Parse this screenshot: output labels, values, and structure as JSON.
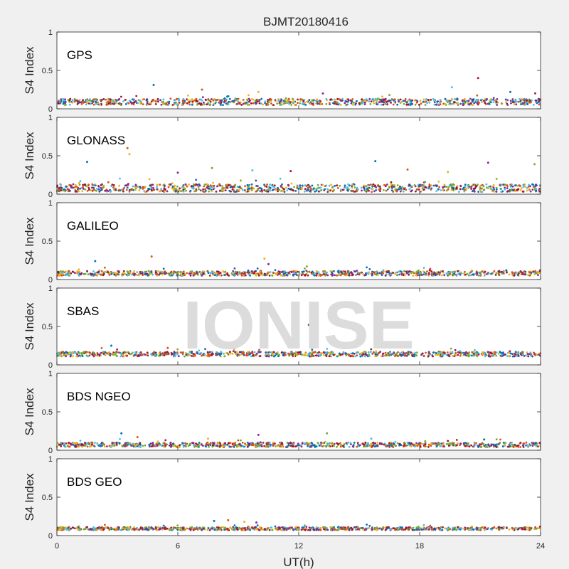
{
  "title": "BJMT20180416",
  "watermark": "IONISE",
  "chart_data": {
    "type": "scatter",
    "title": "BJMT20180416",
    "xlabel": "UT(h)",
    "ylabel": "S4 Index",
    "xlim": [
      0,
      24
    ],
    "ylim": [
      0,
      1
    ],
    "xticks": [
      "0",
      "6",
      "12",
      "18",
      "24"
    ],
    "yticks": [
      "0",
      "0.5",
      "1"
    ],
    "grid": false,
    "colors": [
      "#0072BD",
      "#D95319",
      "#EDB120",
      "#7E2F8E",
      "#77AC30",
      "#4DBEEE",
      "#A2142F"
    ],
    "panels": [
      {
        "label": "GPS",
        "baseline": 0.09,
        "spread": 0.04,
        "spikes": [
          [
            4.8,
            0.31
          ],
          [
            7.2,
            0.25
          ],
          [
            10.0,
            0.22
          ],
          [
            13.2,
            0.2
          ],
          [
            16.5,
            0.18
          ],
          [
            19.6,
            0.28
          ],
          [
            20.9,
            0.4
          ],
          [
            22.5,
            0.22
          ]
        ]
      },
      {
        "label": "GLONASS",
        "baseline": 0.08,
        "spread": 0.05,
        "spikes": [
          [
            1.5,
            0.42
          ],
          [
            3.5,
            0.6
          ],
          [
            3.6,
            0.52
          ],
          [
            6.0,
            0.28
          ],
          [
            7.7,
            0.34
          ],
          [
            9.7,
            0.31
          ],
          [
            11.6,
            0.3
          ],
          [
            15.8,
            0.43
          ],
          [
            17.4,
            0.32
          ],
          [
            19.4,
            0.29
          ],
          [
            21.4,
            0.41
          ],
          [
            23.7,
            0.39
          ]
        ]
      },
      {
        "label": "GALILEO",
        "baseline": 0.08,
        "spread": 0.03,
        "spikes": [
          [
            1.9,
            0.24
          ],
          [
            4.7,
            0.3
          ],
          [
            10.3,
            0.27
          ],
          [
            10.5,
            0.2
          ],
          [
            12.4,
            0.17
          ],
          [
            16.2,
            0.12
          ],
          [
            18.5,
            0.12
          ],
          [
            22.3,
            0.12
          ]
        ]
      },
      {
        "label": "SBAS",
        "baseline": 0.14,
        "spread": 0.03,
        "spikes": [
          [
            2.7,
            0.25
          ],
          [
            5.5,
            0.22
          ],
          [
            8.8,
            0.2
          ],
          [
            12.5,
            0.52
          ],
          [
            15.3,
            0.17
          ],
          [
            20.0,
            0.18
          ]
        ]
      },
      {
        "label": "BDS NGEO",
        "baseline": 0.07,
        "spread": 0.03,
        "spikes": [
          [
            3.2,
            0.22
          ],
          [
            4.0,
            0.17
          ],
          [
            7.5,
            0.15
          ],
          [
            10.0,
            0.2
          ],
          [
            13.4,
            0.22
          ],
          [
            15.6,
            0.15
          ],
          [
            19.4,
            0.12
          ],
          [
            21.2,
            0.14
          ]
        ]
      },
      {
        "label": "BDS GEO",
        "baseline": 0.09,
        "spread": 0.02,
        "spikes": [
          [
            7.8,
            0.19
          ],
          [
            8.5,
            0.2
          ],
          [
            9.3,
            0.18
          ],
          [
            9.9,
            0.17
          ]
        ]
      }
    ]
  }
}
